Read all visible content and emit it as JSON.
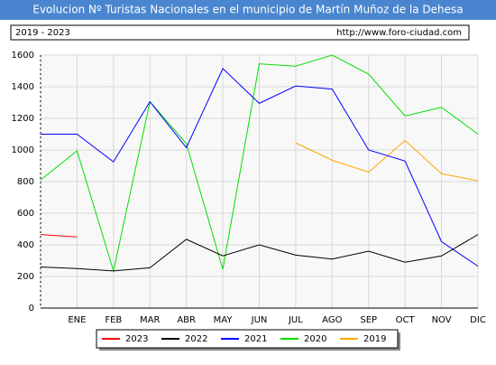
{
  "chart_data": {
    "type": "line",
    "title": "Evolucion Nº Turistas Nacionales en el municipio de Martín Muñoz de la Dehesa",
    "subtitle": "2019 - 2023",
    "source": "http://www.foro-ciudad.com",
    "categories": [
      null,
      "ENE",
      "FEB",
      "MAR",
      "ABR",
      "MAY",
      "JUN",
      "JUL",
      "AGO",
      "SEP",
      "OCT",
      "NOV",
      "DIC"
    ],
    "series": [
      {
        "name": "2023",
        "color": "#ff0000",
        "values": [
          465,
          450,
          null,
          null,
          null,
          null,
          null,
          null,
          null,
          null,
          null,
          null,
          null
        ]
      },
      {
        "name": "2022",
        "color": "#000000",
        "values": [
          260,
          250,
          235,
          255,
          435,
          330,
          400,
          335,
          310,
          360,
          290,
          330,
          465
        ]
      },
      {
        "name": "2021",
        "color": "#0000ff",
        "values": [
          1100,
          1100,
          925,
          1305,
          1015,
          1515,
          1295,
          1405,
          1385,
          1000,
          930,
          420,
          265
        ]
      },
      {
        "name": "2020",
        "color": "#00e000",
        "values": [
          810,
          995,
          235,
          1305,
          1040,
          245,
          1545,
          1530,
          1600,
          1480,
          1215,
          1270,
          1100
        ]
      },
      {
        "name": "2019",
        "color": "#ffa500",
        "values": [
          null,
          null,
          null,
          null,
          null,
          null,
          null,
          1045,
          935,
          860,
          1060,
          850,
          805
        ]
      }
    ],
    "ylim": [
      0,
      1600
    ],
    "yticks": [
      0,
      200,
      400,
      600,
      800,
      1000,
      1200,
      1400,
      1600
    ],
    "grid": true
  }
}
